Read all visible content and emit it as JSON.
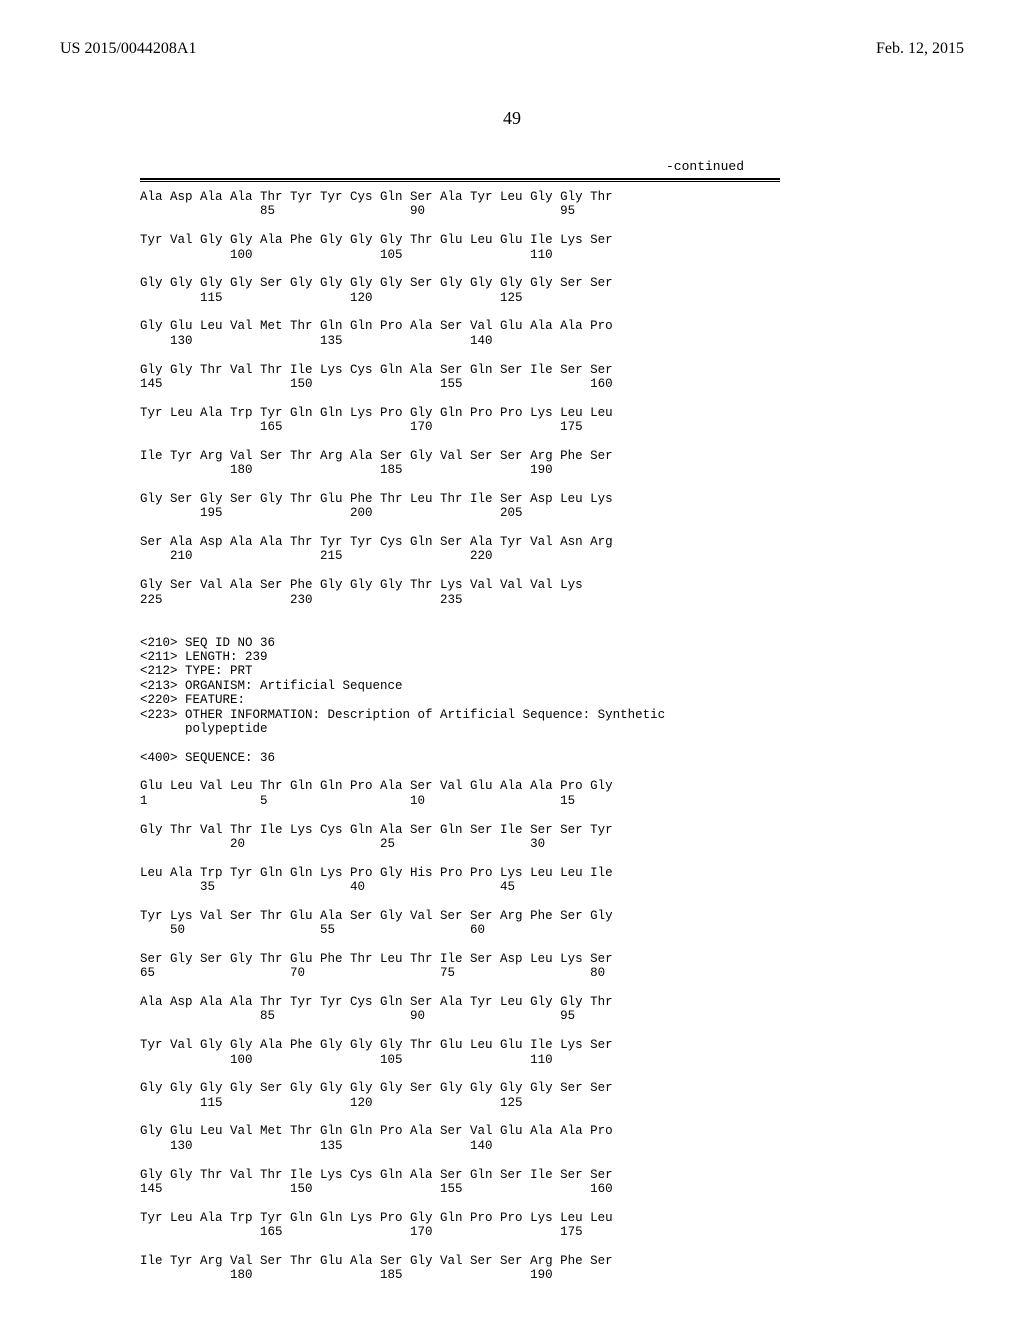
{
  "header": {
    "publication_number": "US 2015/0044208A1",
    "date": "Feb. 12, 2015"
  },
  "page_number": "49",
  "continued_label": "-continued",
  "sequence_text": "Ala Asp Ala Ala Thr Tyr Tyr Cys Gln Ser Ala Tyr Leu Gly Gly Thr\n                85                  90                  95\n\nTyr Val Gly Gly Ala Phe Gly Gly Gly Thr Glu Leu Glu Ile Lys Ser\n            100                 105                 110\n\nGly Gly Gly Gly Ser Gly Gly Gly Gly Ser Gly Gly Gly Gly Ser Ser\n        115                 120                 125\n\nGly Glu Leu Val Met Thr Gln Gln Pro Ala Ser Val Glu Ala Ala Pro\n    130                 135                 140\n\nGly Gly Thr Val Thr Ile Lys Cys Gln Ala Ser Gln Ser Ile Ser Ser\n145                 150                 155                 160\n\nTyr Leu Ala Trp Tyr Gln Gln Lys Pro Gly Gln Pro Pro Lys Leu Leu\n                165                 170                 175\n\nIle Tyr Arg Val Ser Thr Arg Ala Ser Gly Val Ser Ser Arg Phe Ser\n            180                 185                 190\n\nGly Ser Gly Ser Gly Thr Glu Phe Thr Leu Thr Ile Ser Asp Leu Lys\n        195                 200                 205\n\nSer Ala Asp Ala Ala Thr Tyr Tyr Cys Gln Ser Ala Tyr Val Asn Arg\n    210                 215                 220\n\nGly Ser Val Ala Ser Phe Gly Gly Gly Thr Lys Val Val Val Lys\n225                 230                 235\n\n\n<210> SEQ ID NO 36\n<211> LENGTH: 239\n<212> TYPE: PRT\n<213> ORGANISM: Artificial Sequence\n<220> FEATURE:\n<223> OTHER INFORMATION: Description of Artificial Sequence: Synthetic\n      polypeptide\n\n<400> SEQUENCE: 36\n\nGlu Leu Val Leu Thr Gln Gln Pro Ala Ser Val Glu Ala Ala Pro Gly\n1               5                   10                  15\n\nGly Thr Val Thr Ile Lys Cys Gln Ala Ser Gln Ser Ile Ser Ser Tyr\n            20                  25                  30\n\nLeu Ala Trp Tyr Gln Gln Lys Pro Gly His Pro Pro Lys Leu Leu Ile\n        35                  40                  45\n\nTyr Lys Val Ser Thr Glu Ala Ser Gly Val Ser Ser Arg Phe Ser Gly\n    50                  55                  60\n\nSer Gly Ser Gly Thr Glu Phe Thr Leu Thr Ile Ser Asp Leu Lys Ser\n65                  70                  75                  80\n\nAla Asp Ala Ala Thr Tyr Tyr Cys Gln Ser Ala Tyr Leu Gly Gly Thr\n                85                  90                  95\n\nTyr Val Gly Gly Ala Phe Gly Gly Gly Thr Glu Leu Glu Ile Lys Ser\n            100                 105                 110\n\nGly Gly Gly Gly Ser Gly Gly Gly Gly Ser Gly Gly Gly Gly Ser Ser\n        115                 120                 125\n\nGly Glu Leu Val Met Thr Gln Gln Pro Ala Ser Val Glu Ala Ala Pro\n    130                 135                 140\n\nGly Gly Thr Val Thr Ile Lys Cys Gln Ala Ser Gln Ser Ile Ser Ser\n145                 150                 155                 160\n\nTyr Leu Ala Trp Tyr Gln Gln Lys Pro Gly Gln Pro Pro Lys Leu Leu\n                165                 170                 175\n\nIle Tyr Arg Val Ser Thr Glu Ala Ser Gly Val Ser Ser Arg Phe Ser\n            180                 185                 190"
}
